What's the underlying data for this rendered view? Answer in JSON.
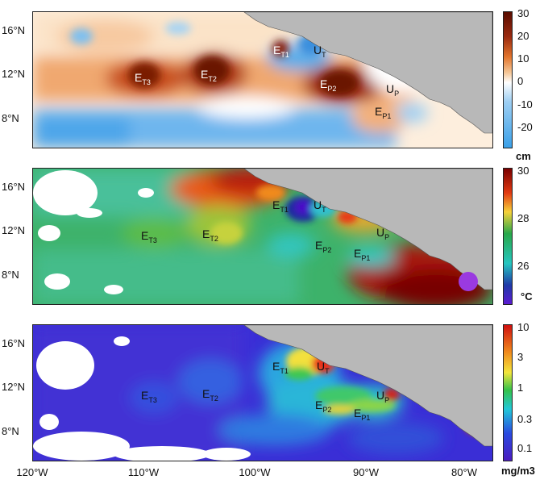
{
  "lat_labels": [
    "16°N",
    "12°N",
    "8°N"
  ],
  "lon_labels": [
    "120°W",
    "110°W",
    "100°W",
    "90°W",
    "80°W"
  ],
  "panels": [
    {
      "id": "sea-level",
      "colorbar": {
        "labels": [
          "30",
          "20",
          "10",
          "0",
          "-10",
          "-20"
        ],
        "unit": "cm",
        "colors": [
          "#3aa0e8",
          "#9ecff3",
          "#ffffff",
          "#f6c99a",
          "#e2742c",
          "#9a2a10",
          "#5a0d00"
        ]
      },
      "annotations": [
        {
          "base": "E",
          "sub": "T3"
        },
        {
          "base": "E",
          "sub": "T2"
        },
        {
          "base": "E",
          "sub": "T1"
        },
        {
          "base": "U",
          "sub": "T"
        },
        {
          "base": "E",
          "sub": "P2"
        },
        {
          "base": "U",
          "sub": "P"
        },
        {
          "base": "E",
          "sub": "P1"
        }
      ]
    },
    {
      "id": "sst",
      "colorbar": {
        "labels": [
          "30",
          "28",
          "26"
        ],
        "unit": "°C",
        "colors": [
          "#7a0000",
          "#e23a12",
          "#f6d23a",
          "#28a84a",
          "#26c6c0",
          "#1f3aa8",
          "#5b1bd1"
        ]
      },
      "annotations": [
        {
          "base": "E",
          "sub": "T1"
        },
        {
          "base": "U",
          "sub": "T"
        },
        {
          "base": "E",
          "sub": "T3"
        },
        {
          "base": "E",
          "sub": "T2"
        },
        {
          "base": "U",
          "sub": "P"
        },
        {
          "base": "E",
          "sub": "P2"
        },
        {
          "base": "E",
          "sub": "P1"
        }
      ]
    },
    {
      "id": "chlorophyll",
      "colorbar": {
        "labels": [
          "10",
          "3",
          "1",
          "0.3",
          "0.1"
        ],
        "unit": "mg/m3",
        "colors": [
          "#d01010",
          "#f08a1c",
          "#f3e63c",
          "#34c24a",
          "#22c8d8",
          "#2a4ae0",
          "#4a1cc0"
        ]
      },
      "annotations": [
        {
          "base": "E",
          "sub": "T1"
        },
        {
          "base": "U",
          "sub": "T"
        },
        {
          "base": "E",
          "sub": "T3"
        },
        {
          "base": "E",
          "sub": "T2"
        },
        {
          "base": "U",
          "sub": "P"
        },
        {
          "base": "E",
          "sub": "P2"
        },
        {
          "base": "E",
          "sub": "P1"
        }
      ]
    }
  ],
  "colors": {
    "land": "#b8b8b8",
    "frame": "#222222",
    "nodata": "#ffffff"
  }
}
